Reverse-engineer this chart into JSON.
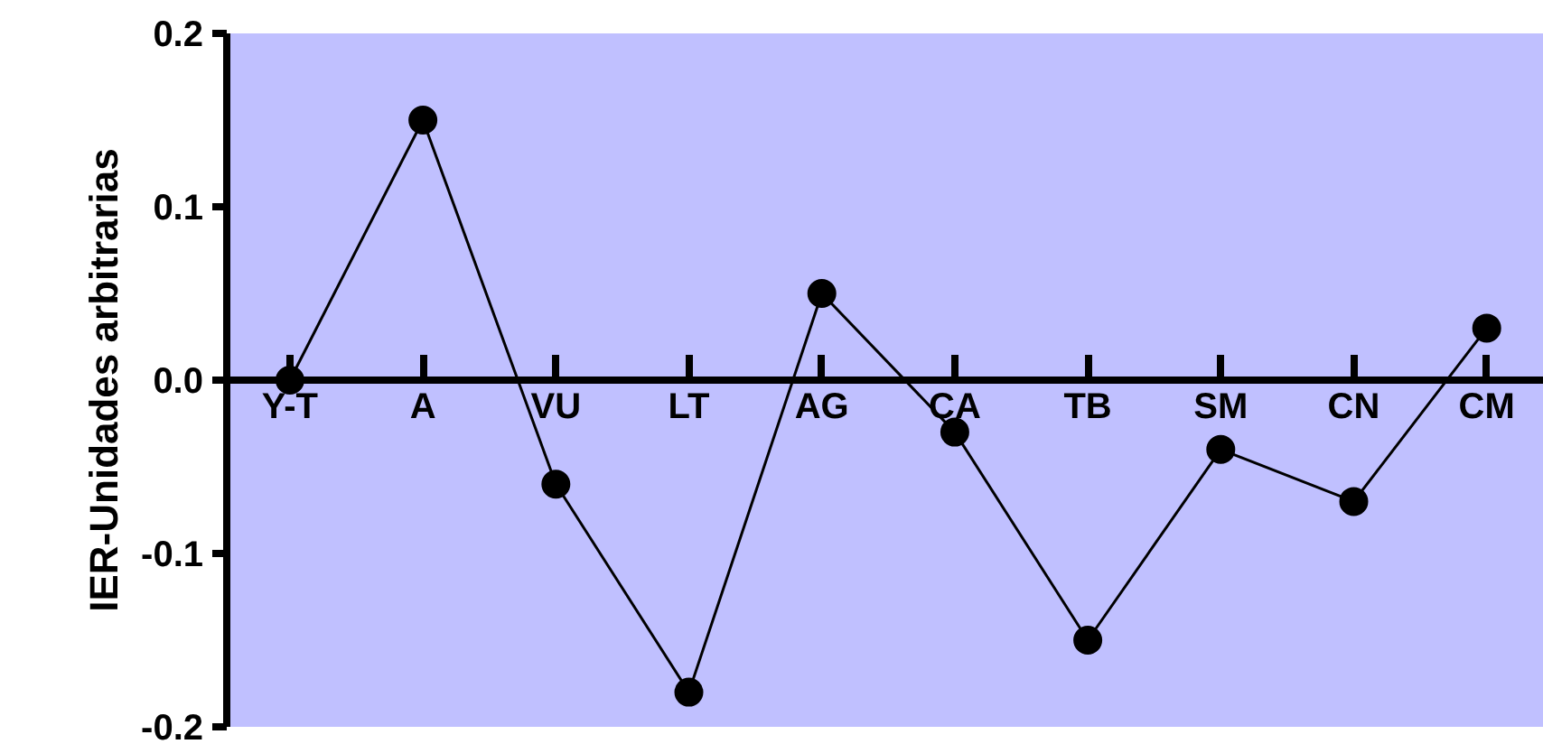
{
  "chart_data": {
    "type": "line",
    "ylabel": "IER-Unidades arbitrarias",
    "categories": [
      "Y-T",
      "A",
      "VU",
      "LT",
      "AG",
      "CA",
      "TB",
      "SM",
      "CN",
      "CM"
    ],
    "values": [
      0,
      0.15,
      -0.06,
      -0.18,
      0.05,
      -0.03,
      -0.15,
      -0.04,
      -0.07,
      0.03
    ],
    "color": "#000000",
    "marker": "circle",
    "line_style": "solid",
    "ylim": [
      -0.2,
      0.2
    ],
    "yticks": [
      0.2,
      0.1,
      {
        "value": 0,
        "label": "0.0"
      },
      -0.1,
      -0.2
    ],
    "grid": false
  }
}
